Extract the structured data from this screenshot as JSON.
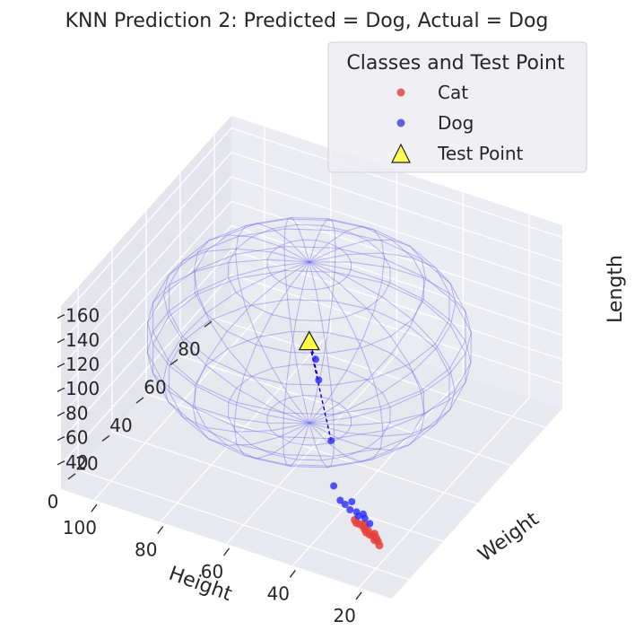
{
  "chart_data": {
    "type": "scatter",
    "projection": "3d",
    "style": "seaborn-darkgrid",
    "title": "KNN Prediction 2: Predicted = Dog, Actual = Dog",
    "xlabel": "Height",
    "ylabel": "Weight",
    "zlabel": "Length",
    "xlim": [
      10,
      110
    ],
    "ylim": [
      -10,
      90
    ],
    "zlim": [
      20,
      170
    ],
    "xticks": [
      20,
      40,
      60,
      80,
      100
    ],
    "yticks": [
      0,
      20,
      40,
      60,
      80
    ],
    "zticks": [
      40,
      60,
      80,
      100,
      120,
      140,
      160
    ],
    "legend": {
      "title": "Classes and Test Point",
      "position": "top-right",
      "entries": [
        {
          "label": "Cat",
          "marker": "circle",
          "color": "#e06060"
        },
        {
          "label": "Dog",
          "marker": "circle",
          "color": "#5555ee"
        },
        {
          "label": "Test Point",
          "marker": "triangle",
          "color": "#ffff55"
        }
      ]
    },
    "series": [
      {
        "name": "Cat",
        "color": "#e8413c",
        "points": [
          [
            21,
            4,
            32
          ],
          [
            22,
            5,
            33
          ],
          [
            23,
            5,
            33
          ],
          [
            24,
            6,
            34
          ],
          [
            25,
            6,
            34
          ],
          [
            26,
            7,
            35
          ],
          [
            27,
            7,
            35
          ],
          [
            28,
            8,
            35
          ],
          [
            29,
            8,
            36
          ],
          [
            30,
            8,
            36
          ],
          [
            24,
            7,
            34
          ],
          [
            26,
            6,
            35
          ],
          [
            28,
            9,
            35
          ],
          [
            31,
            9,
            36
          ],
          [
            23,
            6,
            33
          ]
        ]
      },
      {
        "name": "Dog",
        "color": "#2b2bff",
        "points": [
          [
            27,
            10,
            35
          ],
          [
            29,
            11,
            36
          ],
          [
            31,
            11,
            36
          ],
          [
            32,
            12,
            37
          ],
          [
            34,
            12,
            37
          ],
          [
            36,
            13,
            38
          ],
          [
            38,
            14,
            38
          ],
          [
            30,
            12,
            37
          ],
          [
            35,
            15,
            38
          ],
          [
            42,
            18,
            40
          ],
          [
            50,
            32,
            48
          ],
          [
            62,
            48,
            62
          ],
          [
            66,
            54,
            66
          ]
        ]
      },
      {
        "name": "Test Point",
        "color": "#ffff44",
        "points": [
          [
            70,
            58,
            70
          ]
        ]
      }
    ],
    "neighbor_radius": 44,
    "neighbor_sphere_color": "#6a6aee",
    "neighbor_line_color": "#0000cc"
  }
}
